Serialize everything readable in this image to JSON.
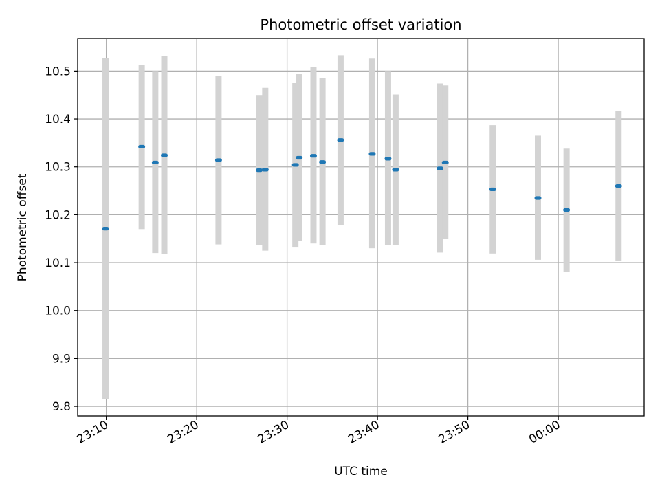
{
  "chart_data": {
    "type": "scatter",
    "title": "Photometric offset variation",
    "xlabel": "UTC time",
    "ylabel": "Photometric offset",
    "grid": true,
    "colors": {
      "point": "#1f77b4",
      "errorbar": "#d3d3d3",
      "grid": "#b0b0b0",
      "axis": "#000000"
    },
    "xlim": [
      "23:06:50",
      "00:09:30"
    ],
    "ylim": [
      9.78,
      10.568
    ],
    "x_ticks": [
      "23:10",
      "23:20",
      "23:30",
      "23:40",
      "23:50",
      "00:00"
    ],
    "y_ticks": [
      "9.8",
      "9.9",
      "10.0",
      "10.1",
      "10.2",
      "10.3",
      "10.4",
      "10.5"
    ],
    "points": [
      {
        "x": "23:09:55",
        "y": 10.171,
        "err_low": 9.815,
        "err_high": 10.527
      },
      {
        "x": "23:13:55",
        "y": 10.342,
        "err_low": 10.17,
        "err_high": 10.513
      },
      {
        "x": "23:15:25",
        "y": 10.309,
        "err_low": 10.12,
        "err_high": 10.5
      },
      {
        "x": "23:16:25",
        "y": 10.324,
        "err_low": 10.118,
        "err_high": 10.532
      },
      {
        "x": "23:22:25",
        "y": 10.314,
        "err_low": 10.138,
        "err_high": 10.49
      },
      {
        "x": "23:26:55",
        "y": 10.293,
        "err_low": 10.137,
        "err_high": 10.45
      },
      {
        "x": "23:27:35",
        "y": 10.294,
        "err_low": 10.125,
        "err_high": 10.465
      },
      {
        "x": "23:30:55",
        "y": 10.304,
        "err_low": 10.133,
        "err_high": 10.475
      },
      {
        "x": "23:31:20",
        "y": 10.319,
        "err_low": 10.145,
        "err_high": 10.494
      },
      {
        "x": "23:32:55",
        "y": 10.323,
        "err_low": 10.14,
        "err_high": 10.508
      },
      {
        "x": "23:33:55",
        "y": 10.31,
        "err_low": 10.136,
        "err_high": 10.485
      },
      {
        "x": "23:35:55",
        "y": 10.356,
        "err_low": 10.179,
        "err_high": 10.533
      },
      {
        "x": "23:39:25",
        "y": 10.327,
        "err_low": 10.13,
        "err_high": 10.526
      },
      {
        "x": "23:41:10",
        "y": 10.317,
        "err_low": 10.137,
        "err_high": 10.5
      },
      {
        "x": "23:42:00",
        "y": 10.294,
        "err_low": 10.136,
        "err_high": 10.451
      },
      {
        "x": "23:46:55",
        "y": 10.297,
        "err_low": 10.121,
        "err_high": 10.474
      },
      {
        "x": "23:47:30",
        "y": 10.309,
        "err_low": 10.15,
        "err_high": 10.47
      },
      {
        "x": "23:52:45",
        "y": 10.253,
        "err_low": 10.119,
        "err_high": 10.387
      },
      {
        "x": "23:57:45",
        "y": 10.235,
        "err_low": 10.106,
        "err_high": 10.365
      },
      {
        "x": "00:00:55",
        "y": 10.21,
        "err_low": 10.081,
        "err_high": 10.338
      },
      {
        "x": "00:06:40",
        "y": 10.26,
        "err_low": 10.104,
        "err_high": 10.416
      }
    ]
  }
}
